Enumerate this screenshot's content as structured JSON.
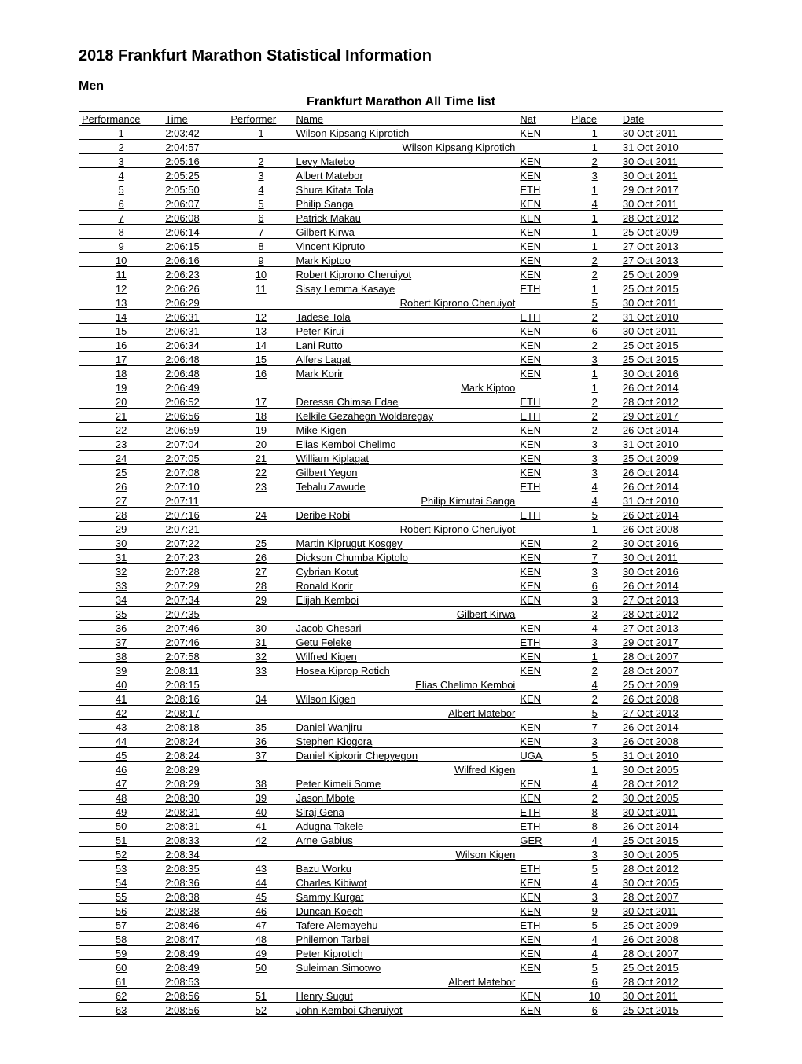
{
  "title": "2018 Frankfurt Marathon Statistical Information",
  "section": "Men",
  "table_title": "Frankfurt Marathon All Time list",
  "columns": [
    "Performance",
    "Time",
    "Performer",
    "Name",
    "Nat",
    "Place",
    "Date"
  ],
  "rows": [
    {
      "perf": "1",
      "time": "2:03:42",
      "performer": "1",
      "name": "Wilson Kipsang Kiprotich",
      "nat": "KEN",
      "place": "1",
      "date": "30 Oct 2011"
    },
    {
      "perf": "2",
      "time": "2:04:57",
      "performer": "",
      "name": "Wilson Kipsang Kiprotich",
      "nat": "",
      "place": "1",
      "date": "31 Oct 2010",
      "nameRight": true
    },
    {
      "perf": "3",
      "time": "2:05:16",
      "performer": "2",
      "name": "Levy Matebo",
      "nat": "KEN",
      "place": "2",
      "date": "30 Oct 2011"
    },
    {
      "perf": "4",
      "time": "2:05:25",
      "performer": "3",
      "name": "Albert Matebor",
      "nat": "KEN",
      "place": "3",
      "date": "30 Oct 2011"
    },
    {
      "perf": "5",
      "time": "2:05:50",
      "performer": "4",
      "name": "Shura Kitata Tola",
      "nat": "ETH",
      "place": "1",
      "date": "29 Oct 2017"
    },
    {
      "perf": "6",
      "time": "2:06:07",
      "performer": "5",
      "name": "Philip Sanga",
      "nat": "KEN",
      "place": "4",
      "date": "30 Oct 2011"
    },
    {
      "perf": "7",
      "time": "2:06:08",
      "performer": "6",
      "name": "Patrick Makau",
      "nat": "KEN",
      "place": "1",
      "date": "28 Oct 2012"
    },
    {
      "perf": "8",
      "time": "2:06:14",
      "performer": "7",
      "name": "Gilbert Kirwa",
      "nat": "KEN",
      "place": "1",
      "date": "25 Oct 2009"
    },
    {
      "perf": "9",
      "time": "2:06:15",
      "performer": "8",
      "name": "Vincent Kipruto",
      "nat": "KEN",
      "place": "1",
      "date": "27 Oct 2013"
    },
    {
      "perf": "10",
      "time": "2:06:16",
      "performer": "9",
      "name": "Mark Kiptoo",
      "nat": "KEN",
      "place": "2",
      "date": "27 Oct 2013"
    },
    {
      "perf": "11",
      "time": "2:06:23",
      "performer": "10",
      "name": "Robert Kiprono Cheruiyot",
      "nat": "KEN",
      "place": "2",
      "date": "25 Oct 2009"
    },
    {
      "perf": "12",
      "time": "2:06:26",
      "performer": "11",
      "name": "Sisay Lemma Kasaye",
      "nat": "ETH",
      "place": "1",
      "date": "25 Oct 2015"
    },
    {
      "perf": "13",
      "time": "2:06:29",
      "performer": "",
      "name": "Robert Kiprono Cheruiyot",
      "nat": "",
      "place": "5",
      "date": "30 Oct 2011",
      "nameRight": true
    },
    {
      "perf": "14",
      "time": "2:06:31",
      "performer": "12",
      "name": "Tadese Tola",
      "nat": "ETH",
      "place": "2",
      "date": "31 Oct 2010"
    },
    {
      "perf": "15",
      "time": "2:06:31",
      "performer": "13",
      "name": "Peter Kirui",
      "nat": "KEN",
      "place": "6",
      "date": "30 Oct 2011"
    },
    {
      "perf": "16",
      "time": "2:06:34",
      "performer": "14",
      "name": "Lani Rutto",
      "nat": "KEN",
      "place": "2",
      "date": "25 Oct 2015"
    },
    {
      "perf": "17",
      "time": "2:06:48",
      "performer": "15",
      "name": "Alfers Lagat",
      "nat": "KEN",
      "place": "3",
      "date": "25 Oct 2015"
    },
    {
      "perf": "18",
      "time": "2:06:48",
      "performer": "16",
      "name": "Mark Korir",
      "nat": "KEN",
      "place": "1",
      "date": "30 Oct 2016"
    },
    {
      "perf": "19",
      "time": "2:06:49",
      "performer": "",
      "name": "Mark Kiptoo",
      "nat": "",
      "place": "1",
      "date": "26 Oct 2014",
      "nameRight": true
    },
    {
      "perf": "20",
      "time": "2:06:52",
      "performer": "17",
      "name": "Deressa Chimsa Edae",
      "nat": "ETH",
      "place": "2",
      "date": "28 Oct 2012"
    },
    {
      "perf": "21",
      "time": "2:06:56",
      "performer": "18",
      "name": "Kelkile Gezahegn Woldaregay",
      "nat": "ETH",
      "place": "2",
      "date": "29 Oct 2017"
    },
    {
      "perf": "22",
      "time": "2:06:59",
      "performer": "19",
      "name": "Mike Kigen",
      "nat": "KEN",
      "place": "2",
      "date": "26 Oct 2014"
    },
    {
      "perf": "23",
      "time": "2:07:04",
      "performer": "20",
      "name": "Elias Kemboi Chelimo",
      "nat": "KEN",
      "place": "3",
      "date": "31 Oct 2010"
    },
    {
      "perf": "24",
      "time": "2:07:05",
      "performer": "21",
      "name": "William Kiplagat",
      "nat": "KEN",
      "place": "3",
      "date": "25 Oct 2009"
    },
    {
      "perf": "25",
      "time": "2:07:08",
      "performer": "22",
      "name": "Gilbert Yegon",
      "nat": "KEN",
      "place": "3",
      "date": "26 Oct 2014"
    },
    {
      "perf": "26",
      "time": "2:07:10",
      "performer": "23",
      "name": "Tebalu Zawude",
      "nat": "ETH",
      "place": "4",
      "date": "26 Oct 2014"
    },
    {
      "perf": "27",
      "time": "2:07:11",
      "performer": "",
      "name": "Philip Kimutai Sanga",
      "nat": "",
      "place": "4",
      "date": "31 Oct 2010",
      "nameRight": true
    },
    {
      "perf": "28",
      "time": "2:07:16",
      "performer": "24",
      "name": "Deribe Robi",
      "nat": "ETH",
      "place": "5",
      "date": "26 Oct 2014"
    },
    {
      "perf": "29",
      "time": "2:07:21",
      "performer": "",
      "name": "Robert Kiprono Cheruiyot",
      "nat": "",
      "place": "1",
      "date": "26 Oct 2008",
      "nameRight": true
    },
    {
      "perf": "30",
      "time": "2:07:22",
      "performer": "25",
      "name": "Martin Kiprugut Kosgey",
      "nat": "KEN",
      "place": "2",
      "date": "30 Oct 2016"
    },
    {
      "perf": "31",
      "time": "2:07:23",
      "performer": "26",
      "name": "Dickson Chumba Kiptolo",
      "nat": "KEN",
      "place": "7",
      "date": "30 Oct 2011"
    },
    {
      "perf": "32",
      "time": "2:07:28",
      "performer": "27",
      "name": "Cybrian Kotut",
      "nat": "KEN",
      "place": "3",
      "date": "30 Oct 2016"
    },
    {
      "perf": "33",
      "time": "2:07:29",
      "performer": "28",
      "name": "Ronald Korir",
      "nat": "KEN",
      "place": "6",
      "date": "26 Oct 2014"
    },
    {
      "perf": "34",
      "time": "2:07:34",
      "performer": "29",
      "name": "Elijah Kemboi",
      "nat": "KEN",
      "place": "3",
      "date": "27 Oct 2013"
    },
    {
      "perf": "35",
      "time": "2:07:35",
      "performer": "",
      "name": "Gilbert Kirwa",
      "nat": "",
      "place": "3",
      "date": "28 Oct 2012",
      "nameRight": true
    },
    {
      "perf": "36",
      "time": "2:07:46",
      "performer": "30",
      "name": "Jacob Chesari",
      "nat": "KEN",
      "place": "4",
      "date": "27 Oct 2013"
    },
    {
      "perf": "37",
      "time": "2:07:46",
      "performer": "31",
      "name": "Getu Feleke",
      "nat": "ETH",
      "place": "3",
      "date": "29 Oct 2017"
    },
    {
      "perf": "38",
      "time": "2:07:58",
      "performer": "32",
      "name": "Wilfred Kigen",
      "nat": "KEN",
      "place": "1",
      "date": "28 Oct 2007"
    },
    {
      "perf": "39",
      "time": "2:08:11",
      "performer": "33",
      "name": "Hosea Kiprop Rotich",
      "nat": "KEN",
      "place": "2",
      "date": "28 Oct 2007"
    },
    {
      "perf": "40",
      "time": "2:08:15",
      "performer": "",
      "name": "Elias Chelimo Kemboi",
      "nat": "",
      "place": "4",
      "date": "25 Oct 2009",
      "nameRight": true
    },
    {
      "perf": "41",
      "time": "2:08:16",
      "performer": "34",
      "name": "Wilson Kigen",
      "nat": "KEN",
      "place": "2",
      "date": "26 Oct 2008"
    },
    {
      "perf": "42",
      "time": "2:08:17",
      "performer": "",
      "name": "Albert Matebor",
      "nat": "",
      "place": "5",
      "date": "27 Oct 2013",
      "nameRight": true
    },
    {
      "perf": "43",
      "time": "2:08:18",
      "performer": "35",
      "name": "Daniel Wanjiru",
      "nat": "KEN",
      "place": "7",
      "date": "26 Oct 2014"
    },
    {
      "perf": "44",
      "time": "2:08:24",
      "performer": "36",
      "name": "Stephen Kiogora",
      "nat": "KEN",
      "place": "3",
      "date": "26 Oct 2008"
    },
    {
      "perf": "45",
      "time": "2:08:24",
      "performer": "37",
      "name": "Daniel Kipkorir Chepyegon",
      "nat": "UGA",
      "place": "5",
      "date": "31 Oct 2010"
    },
    {
      "perf": "46",
      "time": "2:08:29",
      "performer": "",
      "name": "Wilfred Kigen",
      "nat": "",
      "place": "1",
      "date": "30 Oct 2005",
      "nameRight": true
    },
    {
      "perf": "47",
      "time": "2:08:29",
      "performer": "38",
      "name": "Peter Kimeli Some",
      "nat": "KEN",
      "place": "4",
      "date": "28 Oct 2012"
    },
    {
      "perf": "48",
      "time": "2:08:30",
      "performer": "39",
      "name": "Jason Mbote",
      "nat": "KEN",
      "place": "2",
      "date": "30 Oct 2005"
    },
    {
      "perf": "49",
      "time": "2:08:31",
      "performer": "40",
      "name": "Siraj Gena",
      "nat": "ETH",
      "place": "8",
      "date": "30 Oct 2011"
    },
    {
      "perf": "50",
      "time": "2:08:31",
      "performer": "41",
      "name": "Adugna Takele",
      "nat": "ETH",
      "place": "8",
      "date": "26 Oct 2014"
    },
    {
      "perf": "51",
      "time": "2:08:33",
      "performer": "42",
      "name": "Arne Gabius",
      "nat": "GER",
      "place": "4",
      "date": "25 Oct 2015"
    },
    {
      "perf": "52",
      "time": "2:08:34",
      "performer": "",
      "name": "Wilson Kigen",
      "nat": "",
      "place": "3",
      "date": "30 Oct 2005",
      "nameRight": true
    },
    {
      "perf": "53",
      "time": "2:08:35",
      "performer": "43",
      "name": "Bazu Worku",
      "nat": "ETH",
      "place": "5",
      "date": "28 Oct 2012"
    },
    {
      "perf": "54",
      "time": "2:08:36",
      "performer": "44",
      "name": "Charles Kibiwot",
      "nat": "KEN",
      "place": "4",
      "date": "30 Oct 2005"
    },
    {
      "perf": "55",
      "time": "2:08:38",
      "performer": "45",
      "name": "Sammy Kurgat",
      "nat": "KEN",
      "place": "3",
      "date": "28 Oct 2007"
    },
    {
      "perf": "56",
      "time": "2:08:38",
      "performer": "46",
      "name": "Duncan Koech",
      "nat": "KEN",
      "place": "9",
      "date": "30 Oct 2011"
    },
    {
      "perf": "57",
      "time": "2:08:46",
      "performer": "47",
      "name": "Tafere Alemayehu",
      "nat": "ETH",
      "place": "5",
      "date": "25 Oct 2009"
    },
    {
      "perf": "58",
      "time": "2:08:47",
      "performer": "48",
      "name": "Philemon Tarbei",
      "nat": "KEN",
      "place": "4",
      "date": "26 Oct 2008"
    },
    {
      "perf": "59",
      "time": "2:08:49",
      "performer": "49",
      "name": "Peter Kiprotich",
      "nat": "KEN",
      "place": "4",
      "date": "28 Oct 2007"
    },
    {
      "perf": "60",
      "time": "2:08:49",
      "performer": "50",
      "name": "Suleiman Simotwo",
      "nat": "KEN",
      "place": "5",
      "date": "25 Oct 2015"
    },
    {
      "perf": "61",
      "time": "2:08:53",
      "performer": "",
      "name": "Albert Matebor",
      "nat": "",
      "place": "6",
      "date": "28 Oct 2012",
      "nameRight": true
    },
    {
      "perf": "62",
      "time": "2:08:56",
      "performer": "51",
      "name": "Henry Sugut",
      "nat": "KEN",
      "place": "10",
      "date": "30 Oct 2011"
    },
    {
      "perf": "63",
      "time": "2:08:56",
      "performer": "52",
      "name": "John Kemboi Cheruiyot",
      "nat": "KEN",
      "place": "6",
      "date": "25 Oct 2015"
    }
  ]
}
